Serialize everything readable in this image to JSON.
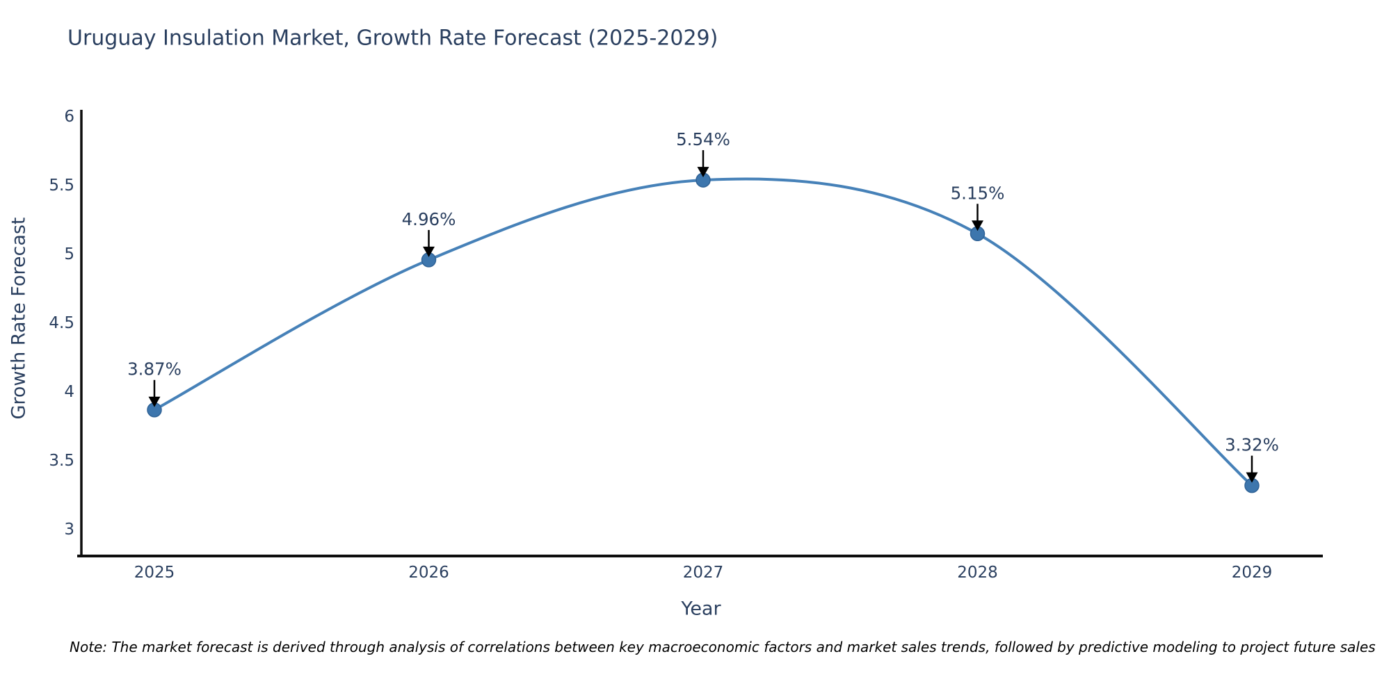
{
  "title": "Uruguay Insulation Market, Growth Rate Forecast (2025-2029)",
  "note": "Note: The market forecast is derived through analysis of correlations between key macroeconomic factors and market sales trends, followed by predictive modeling to project future sales",
  "chart_data": {
    "type": "line",
    "title": "Uruguay Insulation Market, Growth Rate Forecast (2025-2029)",
    "x": [
      2025,
      2026,
      2027,
      2028,
      2029
    ],
    "x_tick_labels": [
      "2025",
      "2026",
      "2027",
      "2028",
      "2029"
    ],
    "series": [
      {
        "name": "Growth Rate Forecast",
        "values": [
          3.87,
          4.96,
          5.54,
          5.15,
          3.32
        ]
      }
    ],
    "point_labels": [
      "3.87%",
      "4.96%",
      "5.54%",
      "5.15%",
      "3.32%"
    ],
    "xlabel": "Year",
    "ylabel": "Growth Rate Forecast",
    "ylim": [
      2.81,
      6.05
    ],
    "yticks": [
      3,
      3.5,
      4,
      4.5,
      5,
      5.5,
      6
    ],
    "ytick_labels": [
      "3",
      "3.5",
      "4",
      "4.5",
      "5",
      "5.5",
      "6"
    ],
    "grid": false,
    "legend": "none",
    "line_shape": "spline",
    "annotation_style": "arrow-down-to-point",
    "colors": {
      "line": "#4681b8",
      "marker_fill": "#3d76ad",
      "marker_edge": "#2f6296",
      "axis_line": "#0d0d0d",
      "label_text": "#2a3f5f",
      "annotation_arrow": "#000000",
      "note_text": "#000000",
      "background": "#ffffff"
    }
  }
}
